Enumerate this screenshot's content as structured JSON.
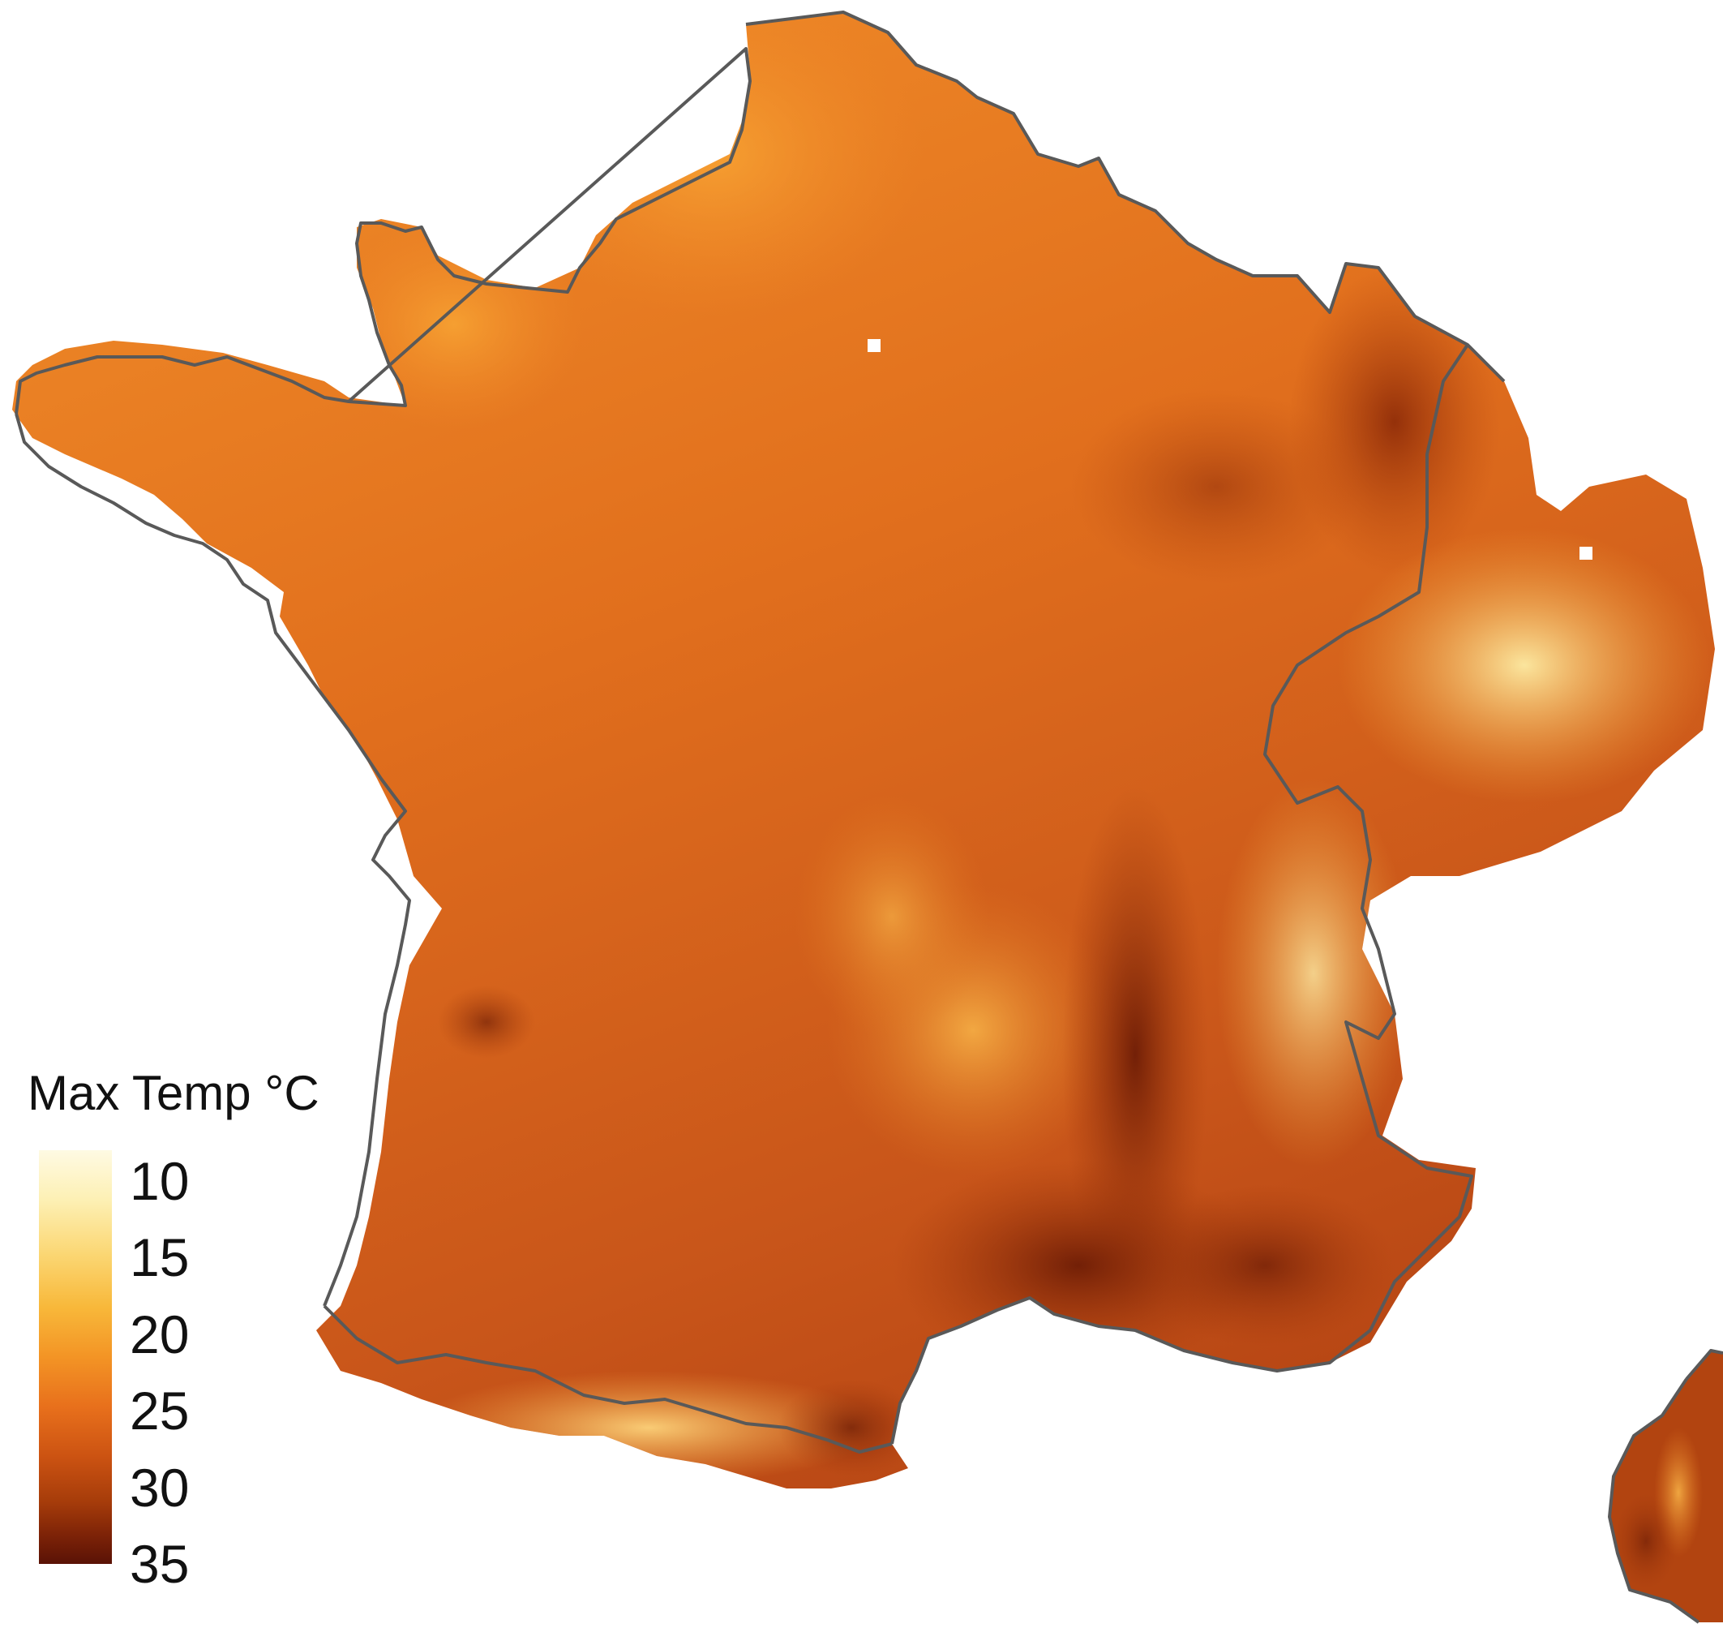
{
  "legend": {
    "title": "Max Temp °C",
    "min": 8,
    "max": 35,
    "ticks": [
      "10",
      "15",
      "20",
      "25",
      "30",
      "35"
    ],
    "colors": [
      "#5a1206",
      "#7d2307",
      "#a63c0a",
      "#cc5312",
      "#e8701c",
      "#f39425",
      "#f8b83a",
      "#fbd774",
      "#fdf0b4",
      "#fefae3"
    ]
  },
  "map": {
    "region": "France",
    "border_color": "#595959",
    "background": "#ffffff",
    "scale": "continuous"
  }
}
